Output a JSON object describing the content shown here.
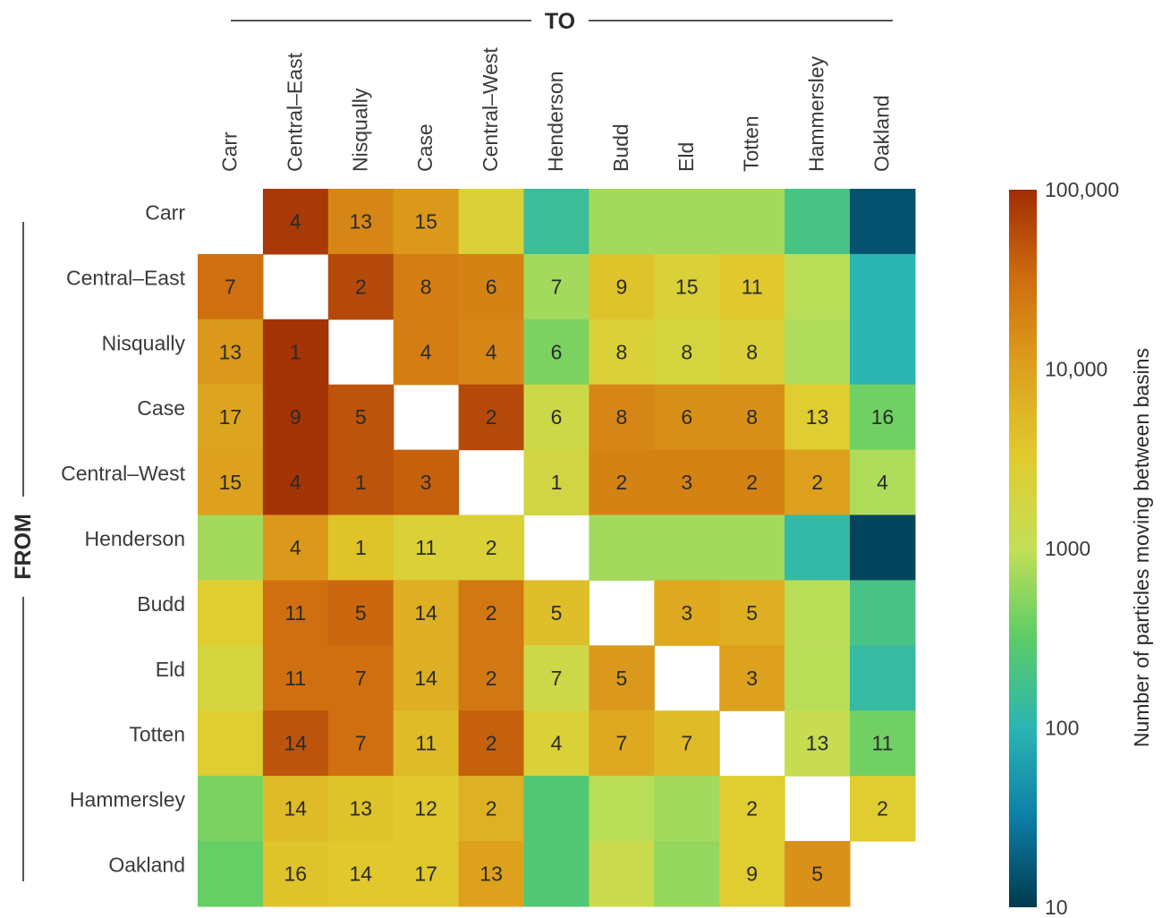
{
  "chart_data": {
    "type": "heatmap",
    "x_axis_title": "TO",
    "y_axis_title": "FROM",
    "x_categories": [
      "Carr",
      "Central–East",
      "Nisqually",
      "Case",
      "Central–West",
      "Henderson",
      "Budd",
      "Eld",
      "Totten",
      "Hammersley",
      "Oakland"
    ],
    "y_categories": [
      "Carr",
      "Central–East",
      "Nisqually",
      "Case",
      "Central–West",
      "Henderson",
      "Budd",
      "Eld",
      "Totten",
      "Hammersley",
      "Oakland"
    ],
    "colorbar": {
      "label": "Number of particles moving between basins",
      "scale": "log",
      "range": [
        10,
        100000
      ],
      "ticks": [
        100000,
        10000,
        1000,
        100,
        10
      ],
      "tick_labels": [
        "100,000",
        "10,000",
        "1000",
        "100",
        "10"
      ],
      "colors": [
        "#003a4f",
        "#0d7ea6",
        "#2bb5b3",
        "#5ccc66",
        "#c3df57",
        "#e0cc2f",
        "#dda11d",
        "#cf6d0f",
        "#a02d04"
      ]
    },
    "cells": [
      [
        null,
        80000,
        18000,
        12000,
        2500,
        150,
        700,
        700,
        700,
        200,
        15
      ],
      [
        30000,
        null,
        60000,
        22000,
        20000,
        700,
        4000,
        2500,
        3500,
        900,
        100
      ],
      [
        12000,
        90000,
        null,
        22000,
        18000,
        450,
        2500,
        2000,
        2500,
        800,
        100
      ],
      [
        9000,
        90000,
        50000,
        null,
        60000,
        1500,
        18000,
        15000,
        15000,
        3000,
        400
      ],
      [
        10000,
        90000,
        50000,
        40000,
        null,
        1800,
        20000,
        20000,
        20000,
        10000,
        800
      ],
      [
        700,
        12000,
        4000,
        2500,
        2500,
        null,
        700,
        700,
        700,
        120,
        12
      ],
      [
        3000,
        30000,
        35000,
        7000,
        25000,
        4500,
        null,
        8000,
        7000,
        900,
        200
      ],
      [
        2000,
        30000,
        30000,
        7000,
        25000,
        1500,
        12000,
        null,
        10000,
        900,
        130
      ],
      [
        3000,
        50000,
        30000,
        5000,
        40000,
        2500,
        8000,
        5000,
        null,
        1200,
        400
      ],
      [
        450,
        5000,
        4000,
        3500,
        6500,
        250,
        900,
        700,
        3000,
        null,
        3000
      ],
      [
        350,
        4000,
        3500,
        3500,
        10000,
        250,
        1300,
        600,
        3000,
        14000,
        null
      ]
    ],
    "labels": [
      [
        "",
        "4",
        "13",
        "15",
        "",
        "",
        "",
        "",
        "",
        "",
        ""
      ],
      [
        "7",
        "",
        "2",
        "8",
        "6",
        "7",
        "9",
        "15",
        "11",
        "",
        ""
      ],
      [
        "13",
        "1",
        "",
        "4",
        "4",
        "6",
        "8",
        "8",
        "8",
        "",
        ""
      ],
      [
        "17",
        "9",
        "5",
        "",
        "2",
        "6",
        "8",
        "6",
        "8",
        "13",
        "16"
      ],
      [
        "15",
        "4",
        "1",
        "3",
        "",
        "1",
        "2",
        "3",
        "2",
        "2",
        "4"
      ],
      [
        "",
        "4",
        "1",
        "11",
        "2",
        "",
        "",
        "",
        "",
        "",
        ""
      ],
      [
        "",
        "11",
        "5",
        "14",
        "2",
        "5",
        "",
        "3",
        "5",
        "",
        ""
      ],
      [
        "",
        "11",
        "7",
        "14",
        "2",
        "7",
        "5",
        "",
        "3",
        "",
        ""
      ],
      [
        "",
        "14",
        "7",
        "11",
        "2",
        "4",
        "7",
        "7",
        "",
        "13",
        "11"
      ],
      [
        "",
        "14",
        "13",
        "12",
        "2",
        "",
        "",
        "",
        "2",
        "",
        "2"
      ],
      [
        "",
        "16",
        "14",
        "17",
        "13",
        "",
        "",
        "",
        "9",
        "5",
        ""
      ]
    ]
  }
}
